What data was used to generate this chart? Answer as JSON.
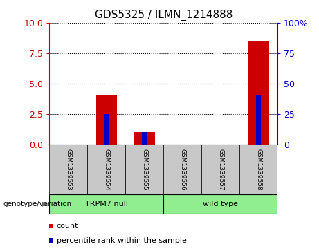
{
  "title": "GDS5325 / ILMN_1214888",
  "categories": [
    "GSM1339553",
    "GSM1339554",
    "GSM1339555",
    "GSM1339556",
    "GSM1339557",
    "GSM1339558"
  ],
  "count_values": [
    0,
    4.0,
    1.0,
    0,
    0,
    8.5
  ],
  "percentile_values": [
    0,
    25,
    10,
    0,
    0,
    40
  ],
  "ylim_left": [
    0,
    10
  ],
  "ylim_right": [
    0,
    100
  ],
  "yticks_left": [
    0,
    2.5,
    5,
    7.5,
    10
  ],
  "yticks_right": [
    0,
    25,
    50,
    75,
    100
  ],
  "count_color": "#cc0000",
  "percentile_color": "#0000cc",
  "red_bar_width": 0.55,
  "blue_bar_width": 0.12,
  "group_labels": [
    "TRPM7 null",
    "wild type"
  ],
  "group_boundaries": [
    0,
    3,
    6
  ],
  "group_color": "#90ee90",
  "sample_bg_color": "#c8c8c8",
  "legend_count_label": "count",
  "legend_percentile_label": "percentile rank within the sample",
  "genotype_label": "genotype/variation",
  "grid_color": "#000000",
  "title_fontsize": 11,
  "tick_fontsize": 9,
  "label_fontsize": 8,
  "legend_fontsize": 8
}
